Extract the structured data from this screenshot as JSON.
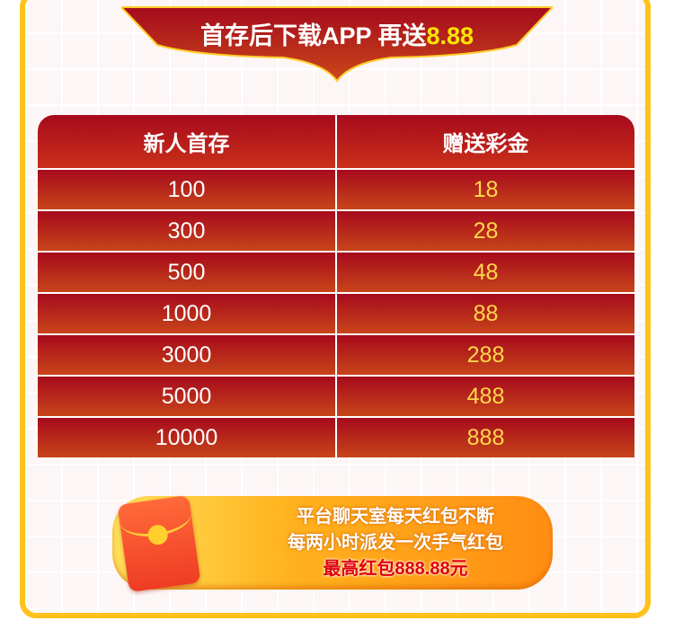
{
  "banner": {
    "text": "首存后下载APP 再送",
    "highlight": "8.88"
  },
  "table": {
    "headers": [
      "新人首存",
      "赠送彩金"
    ],
    "rows": [
      [
        "100",
        "18"
      ],
      [
        "300",
        "28"
      ],
      [
        "500",
        "48"
      ],
      [
        "1000",
        "88"
      ],
      [
        "3000",
        "288"
      ],
      [
        "5000",
        "488"
      ],
      [
        "10000",
        "888"
      ]
    ]
  },
  "promo": {
    "line1": "平台聊天室每天红包不断",
    "line2": "每两小时派发一次手气红包",
    "line3": "最高红包888.88元"
  },
  "colors": {
    "frame": "#ffc21a",
    "header": "#a70a1c",
    "highlight": "#ffe600"
  }
}
